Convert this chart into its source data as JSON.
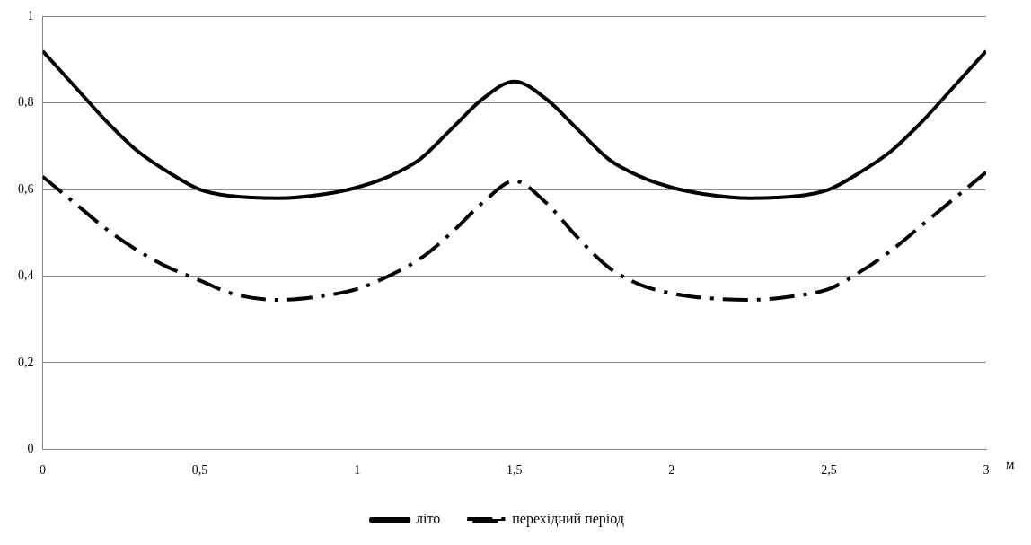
{
  "chart_data": {
    "type": "line",
    "xlabel": "м",
    "x": [
      0,
      0.1,
      0.2,
      0.3,
      0.4,
      0.5,
      0.6,
      0.75,
      0.9,
      1.0,
      1.1,
      1.2,
      1.3,
      1.4,
      1.5,
      1.6,
      1.7,
      1.8,
      1.9,
      2.0,
      2.1,
      2.25,
      2.4,
      2.5,
      2.6,
      2.7,
      2.8,
      2.9,
      3.0
    ],
    "series": [
      {
        "name": "літо",
        "color": "#000000",
        "line_style": "solid",
        "values": [
          0.92,
          0.84,
          0.76,
          0.69,
          0.64,
          0.6,
          0.585,
          0.58,
          0.59,
          0.605,
          0.63,
          0.67,
          0.74,
          0.81,
          0.85,
          0.81,
          0.74,
          0.67,
          0.63,
          0.605,
          0.59,
          0.58,
          0.585,
          0.6,
          0.64,
          0.69,
          0.76,
          0.84,
          0.92
        ]
      },
      {
        "name": "перехідний період",
        "color": "#000000",
        "line_style": "dashed",
        "values": [
          0.63,
          0.57,
          0.51,
          0.46,
          0.42,
          0.39,
          0.36,
          0.345,
          0.355,
          0.37,
          0.4,
          0.44,
          0.5,
          0.57,
          0.62,
          0.57,
          0.49,
          0.42,
          0.38,
          0.36,
          0.35,
          0.345,
          0.355,
          0.37,
          0.41,
          0.46,
          0.52,
          0.58,
          0.64
        ]
      }
    ],
    "xlim": [
      0,
      3
    ],
    "xticks": [
      0,
      {
        "value": 0.5,
        "label": "0,5"
      },
      1,
      {
        "value": 1.5,
        "label": "1,5"
      },
      2,
      {
        "value": 2.5,
        "label": "2,5"
      },
      3
    ],
    "ylim": [
      0,
      1
    ],
    "yticks": [
      0,
      {
        "value": 0.2,
        "label": "0,2"
      },
      {
        "value": 0.4,
        "label": "0,4"
      },
      {
        "value": 0.6,
        "label": "0,6"
      },
      {
        "value": 0.8,
        "label": "0,8"
      },
      1
    ],
    "grid": "y",
    "legend": "bottom",
    "marker": "none"
  }
}
